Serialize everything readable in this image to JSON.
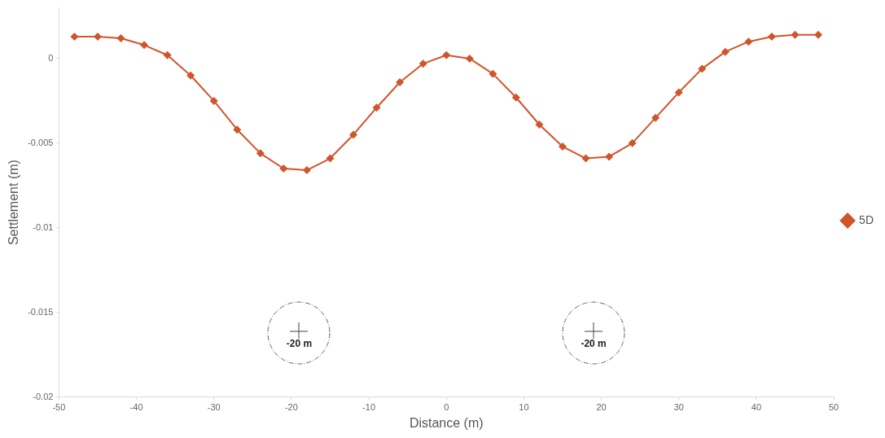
{
  "chart_data": {
    "type": "line",
    "xlabel": "Distance (m)",
    "ylabel": "Settlement (m)",
    "x": [
      -48,
      -45,
      -42,
      -39,
      -36,
      -33,
      -30,
      -27,
      -24,
      -21,
      -18,
      -15,
      -12,
      -9,
      -6,
      -3,
      0,
      3,
      6,
      9,
      12,
      15,
      18,
      21,
      24,
      27,
      30,
      33,
      36,
      39,
      42,
      45,
      48
    ],
    "series": [
      {
        "name": "5D",
        "color": "#d0552a",
        "values": [
          0.0013,
          0.0013,
          0.0012,
          0.0008,
          0.0002,
          -0.001,
          -0.0025,
          -0.0042,
          -0.0056,
          -0.0065,
          -0.0066,
          -0.0059,
          -0.0045,
          -0.0029,
          -0.0014,
          -0.0003,
          0.0002,
          0,
          -0.0009,
          -0.0023,
          -0.0039,
          -0.0052,
          -0.0059,
          -0.0058,
          -0.005,
          -0.0035,
          -0.002,
          -0.0006,
          0.0004,
          0.001,
          0.0013,
          0.0014,
          0.0014
        ]
      }
    ],
    "xlim": [
      -50,
      50
    ],
    "xticks": [
      -50,
      -40,
      -30,
      -20,
      -10,
      0,
      10,
      20,
      30,
      40,
      50
    ],
    "ylim": [
      -0.02,
      0.003
    ],
    "yticks": [
      0,
      -0.005,
      -0.01,
      -0.015,
      -0.02
    ],
    "grid": false,
    "legend": "right",
    "marker": "diamond",
    "line_style": "solid",
    "annotations": [
      "-20 m",
      "-20 m"
    ]
  }
}
